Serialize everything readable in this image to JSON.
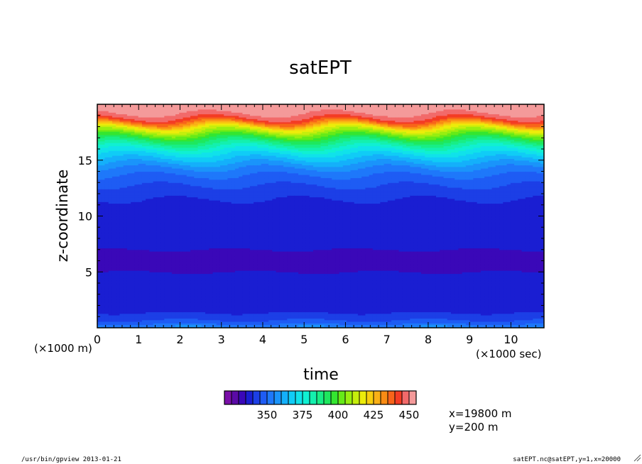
{
  "chart_data": {
    "type": "heatmap",
    "title": "satEPT",
    "xlabel": "time",
    "ylabel": "z-coordinate",
    "x_unit_note": "(×1000 sec)",
    "y_unit_note": "(×1000 m)",
    "xlim": [
      0,
      10.8
    ],
    "ylim": [
      0,
      20
    ],
    "x_ticks": [
      "0",
      "1",
      "2",
      "3",
      "4",
      "5",
      "6",
      "7",
      "8",
      "9",
      "10"
    ],
    "y_ticks": [
      "5",
      "10",
      "15"
    ],
    "colorbar": {
      "ticks": [
        "350",
        "375",
        "400",
        "425",
        "450"
      ],
      "levels": [
        325,
        330,
        335,
        340,
        345,
        350,
        355,
        360,
        365,
        370,
        375,
        380,
        385,
        390,
        395,
        400,
        405,
        410,
        415,
        420,
        425,
        430,
        435,
        440,
        445,
        450,
        455
      ],
      "colors": [
        "#7a0fa8",
        "#5a0aa6",
        "#3a08b8",
        "#1a1ed2",
        "#1c3fe6",
        "#1e5cf4",
        "#1e78fa",
        "#1a94fa",
        "#14b0fa",
        "#10ccf6",
        "#10e2ea",
        "#10f0d2",
        "#14f0ae",
        "#18ee86",
        "#1ee85e",
        "#34e630",
        "#66ea18",
        "#98ee10",
        "#c6ee0c",
        "#ecec0a",
        "#f8ce0e",
        "#fab016",
        "#fa8c14",
        "#f8641a",
        "#f43c24",
        "#f26a6a",
        "#f49a9a"
      ]
    },
    "field": {
      "y": [
        0,
        0.3,
        0.6,
        0.9,
        1.2,
        1.5,
        2,
        3,
        4,
        5,
        6,
        7,
        8,
        9,
        10,
        11,
        12,
        12.5,
        13,
        13.5,
        14,
        14.5,
        15,
        15.5,
        16,
        16.5,
        17,
        17.5,
        18,
        18.3,
        18.6,
        18.9,
        19.2,
        20
      ],
      "value": [
        362,
        356,
        351,
        348,
        346,
        344,
        343,
        342,
        341,
        340,
        339,
        340,
        340,
        341,
        342,
        344,
        346,
        349,
        351,
        354,
        357,
        362,
        368,
        374,
        381,
        390,
        400,
        412,
        425,
        437,
        446,
        452,
        455,
        455
      ]
    },
    "annotations": [
      "x=19800 m",
      "y=200 m"
    ]
  },
  "footer": {
    "left": "/usr/bin/gpview  2013-01-21",
    "right": "satEPT.nc@satEPT,y=1,x=20000"
  }
}
